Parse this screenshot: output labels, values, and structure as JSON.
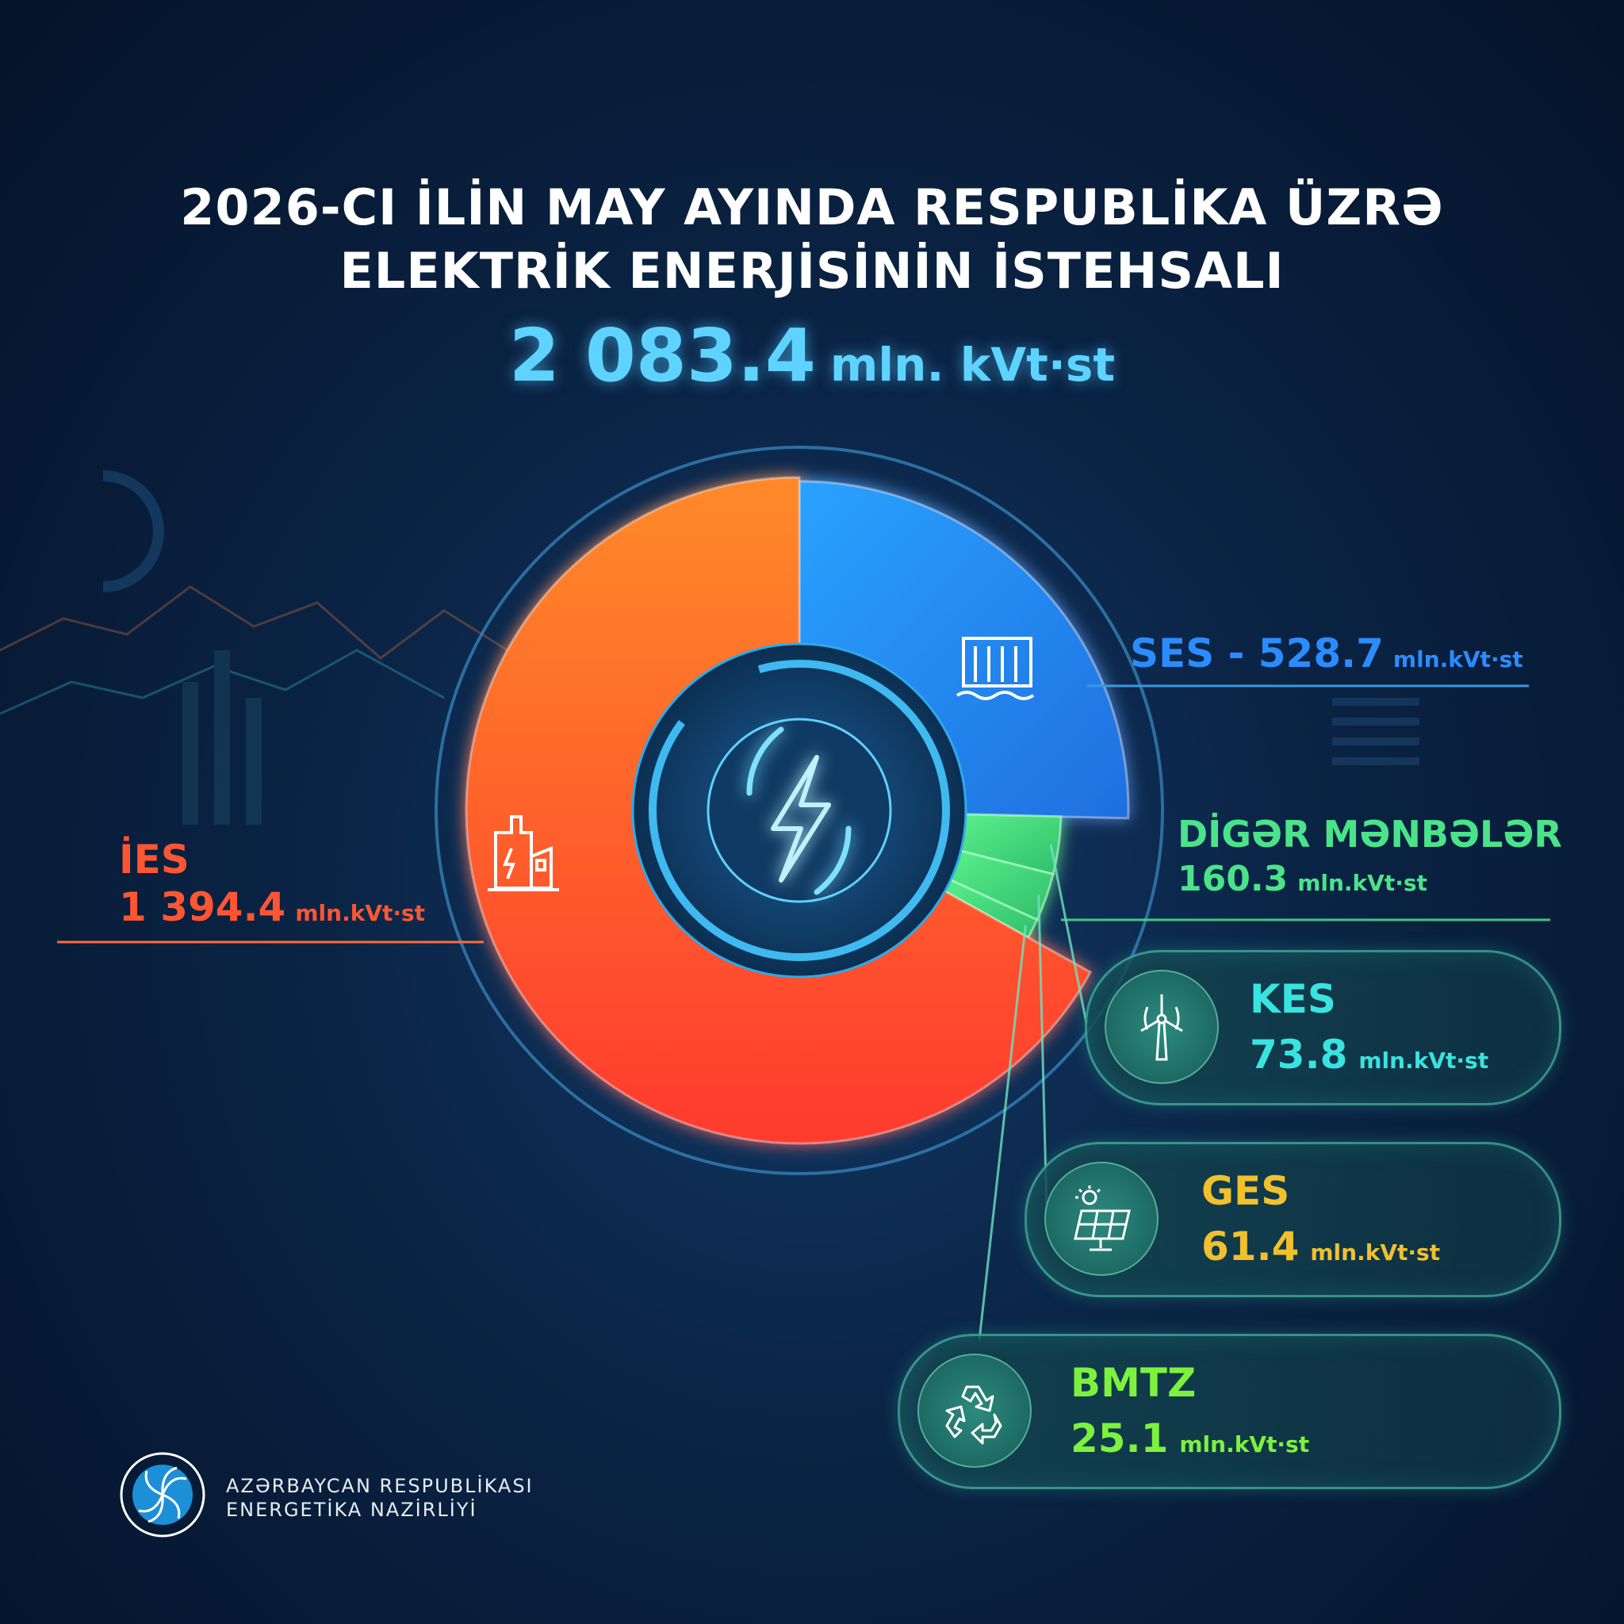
{
  "title_line1": "2026-CI İLİN MAY AYINDA RESPUBLİKA ÜZRƏ",
  "title_line2": "ELEKTRİK ENERJİSİNİN İSTEHSALI",
  "total": {
    "value": "2 083.4",
    "unit": "mln. kVt·st"
  },
  "colors": {
    "ies": "#ff5533",
    "ses": "#2b8cff",
    "diger": "#4be38a",
    "kes": "#39e3e0",
    "ges": "#f0c12c",
    "bmtz": "#7cf23f"
  },
  "chart_data": {
    "type": "pie",
    "unit": "mln.kVt·st",
    "total": 2083.4,
    "slices": [
      {
        "label": "İES",
        "value": 1394.4
      },
      {
        "label": "SES",
        "value": 528.7
      },
      {
        "label": "KES",
        "value": 73.8
      },
      {
        "label": "GES",
        "value": 61.4
      },
      {
        "label": "BMTZ",
        "value": 25.1
      }
    ],
    "groups": [
      {
        "label": "DİGƏR MƏNBƏLƏR",
        "value": 160.3,
        "members": [
          "KES",
          "GES",
          "BMTZ"
        ]
      }
    ]
  },
  "labels": {
    "ies": {
      "name": "İES",
      "value": "1 394.4",
      "unit": "mln.kVt·st"
    },
    "ses": {
      "name": "SES",
      "sep": " - ",
      "value": "528.7",
      "unit": "mln.kVt·st"
    },
    "diger": {
      "name": "DİGƏR MƏNBƏLƏR",
      "value": "160.3",
      "unit": "mln.kVt·st"
    },
    "kes": {
      "name": "KES",
      "value": "73.8",
      "unit": "mln.kVt·st",
      "icon": "wind-turbine-icon"
    },
    "ges": {
      "name": "GES",
      "value": "61.4",
      "unit": "mln.kVt·st",
      "icon": "solar-panel-icon"
    },
    "bmtz": {
      "name": "BMTZ",
      "value": "25.1",
      "unit": "mln.kVt·st",
      "icon": "recycle-icon"
    }
  },
  "org": {
    "line1": "AZƏRBAYCAN RESPUBLİKASI",
    "line2": "ENERGETİKA NAZİRLİYİ",
    "logo_icon": "ministry-emblem-icon"
  }
}
